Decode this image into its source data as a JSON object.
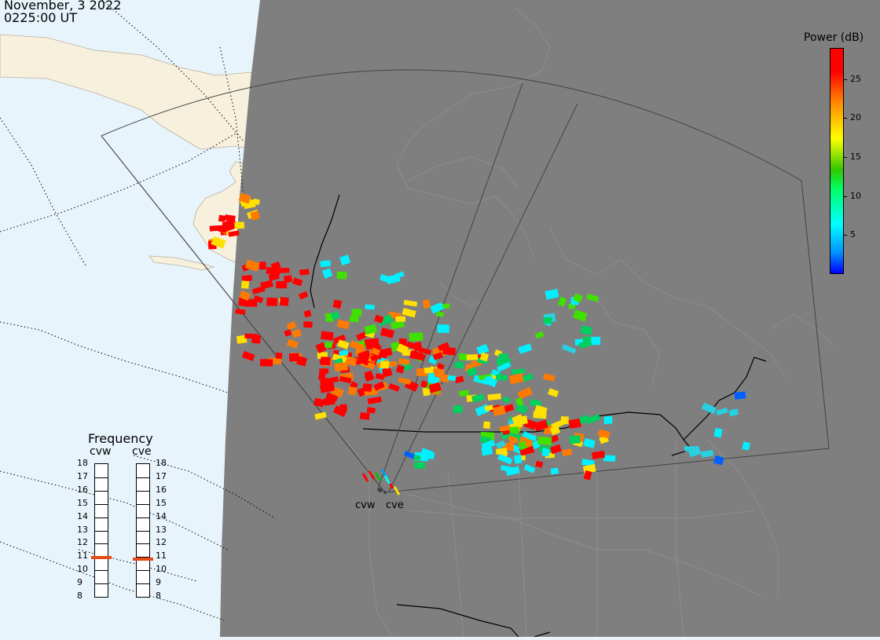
{
  "header": {
    "date": "November, 3 2022",
    "time": "0225:00 UT"
  },
  "colorbar": {
    "title": "Power (dB)",
    "ticks": [
      "25",
      "20",
      "15",
      "10",
      "5"
    ],
    "tick_values": [
      25,
      20,
      15,
      10,
      5
    ],
    "range": [
      0,
      29
    ]
  },
  "frequency_panel": {
    "title": "Frequency",
    "radars": [
      {
        "code": "cvw",
        "freq_mhz": 10.9
      },
      {
        "code": "cve",
        "freq_mhz": 10.8
      }
    ],
    "scale": [
      "18",
      "17",
      "16",
      "15",
      "14",
      "13",
      "12",
      "11",
      "10",
      "9",
      "8"
    ]
  },
  "site_labels": {
    "west": "cvw",
    "east": "cve"
  },
  "colors": {
    "ocean": "#e8f4fb",
    "land": "#f7f0dc",
    "night": "#7f7f7f",
    "boundary": "#000000",
    "freq_marker": "#e64a19"
  }
}
